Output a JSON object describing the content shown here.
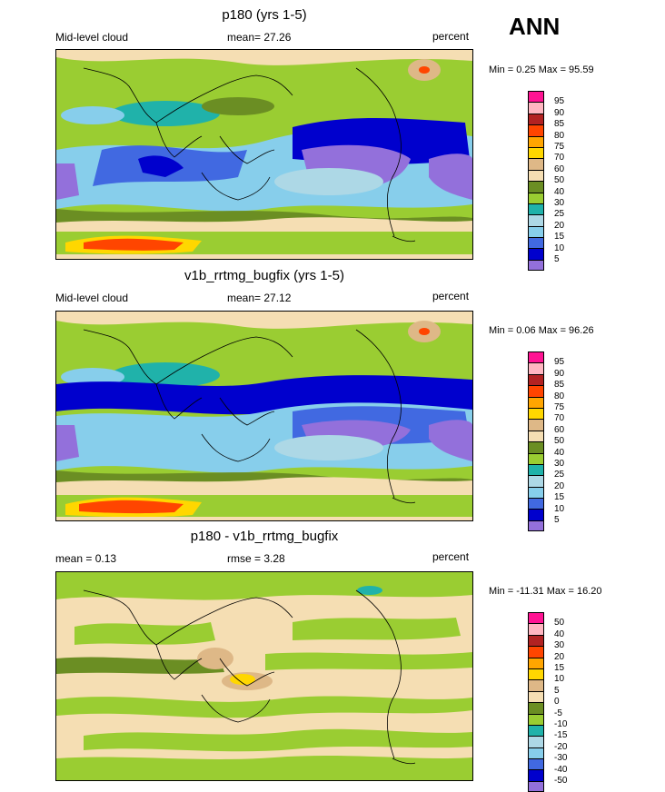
{
  "header": {
    "season": "ANN"
  },
  "panels": [
    {
      "title": "p180 (yrs 1-5)",
      "left_label": "Mid-level cloud",
      "center_label": "mean=  27.26",
      "right_label": "percent",
      "minmax": "Min =   0.25 Max =  95.59",
      "cbar_labels": [
        "95",
        "90",
        "85",
        "80",
        "75",
        "70",
        "60",
        "50",
        "40",
        "30",
        "25",
        "20",
        "15",
        "10",
        "5"
      ],
      "cbar_colors": [
        "#ff1493",
        "#ffb6c1",
        "#b22222",
        "#ff4500",
        "#ffa500",
        "#ffd700",
        "#deb887",
        "#f5deb3",
        "#6b8e23",
        "#9acd32",
        "#20b2aa",
        "#add8e6",
        "#87ceeb",
        "#4169e1",
        "#0000cd",
        "#9370db"
      ]
    },
    {
      "title": "v1b_rrtmg_bugfix (yrs 1-5)",
      "left_label": "Mid-level cloud",
      "center_label": "mean=  27.12",
      "right_label": "percent",
      "minmax": "Min =   0.06 Max =  96.26",
      "cbar_labels": [
        "95",
        "90",
        "85",
        "80",
        "75",
        "70",
        "60",
        "50",
        "40",
        "30",
        "25",
        "20",
        "15",
        "10",
        "5"
      ],
      "cbar_colors": [
        "#ff1493",
        "#ffb6c1",
        "#b22222",
        "#ff4500",
        "#ffa500",
        "#ffd700",
        "#deb887",
        "#f5deb3",
        "#6b8e23",
        "#9acd32",
        "#20b2aa",
        "#add8e6",
        "#87ceeb",
        "#4169e1",
        "#0000cd",
        "#9370db"
      ]
    },
    {
      "title": "p180 - v1b_rrtmg_bugfix",
      "left_label": "mean =   0.13",
      "center_label": "rmse =   3.28",
      "right_label": "percent",
      "minmax": "Min = -11.31 Max =  16.20",
      "cbar_labels": [
        "50",
        "40",
        "30",
        "20",
        "15",
        "10",
        "5",
        "0",
        "-5",
        "-10",
        "-15",
        "-20",
        "-30",
        "-40",
        "-50"
      ],
      "cbar_colors": [
        "#ff1493",
        "#ffb6c1",
        "#b22222",
        "#ff4500",
        "#ffa500",
        "#ffd700",
        "#deb887",
        "#f5deb3",
        "#6b8e23",
        "#9acd32",
        "#20b2aa",
        "#add8e6",
        "#87ceeb",
        "#4169e1",
        "#0000cd",
        "#9370db"
      ]
    }
  ],
  "chart_data": [
    {
      "type": "heatmap",
      "title": "p180 (yrs 1-5)",
      "variable": "Mid-level cloud",
      "units": "percent",
      "mean": 27.26,
      "min": 0.25,
      "max": 95.59,
      "levels": [
        5,
        10,
        15,
        20,
        25,
        30,
        40,
        50,
        60,
        70,
        75,
        80,
        85,
        90,
        95
      ]
    },
    {
      "type": "heatmap",
      "title": "v1b_rrtmg_bugfix (yrs 1-5)",
      "variable": "Mid-level cloud",
      "units": "percent",
      "mean": 27.12,
      "min": 0.06,
      "max": 96.26,
      "levels": [
        5,
        10,
        15,
        20,
        25,
        30,
        40,
        50,
        60,
        70,
        75,
        80,
        85,
        90,
        95
      ]
    },
    {
      "type": "heatmap",
      "title": "p180 - v1b_rrtmg_bugfix",
      "units": "percent",
      "mean": 0.13,
      "rmse": 3.28,
      "min": -11.31,
      "max": 16.2,
      "levels": [
        -50,
        -40,
        -30,
        -20,
        -15,
        -10,
        -5,
        0,
        5,
        10,
        15,
        20,
        30,
        40,
        50
      ]
    }
  ]
}
